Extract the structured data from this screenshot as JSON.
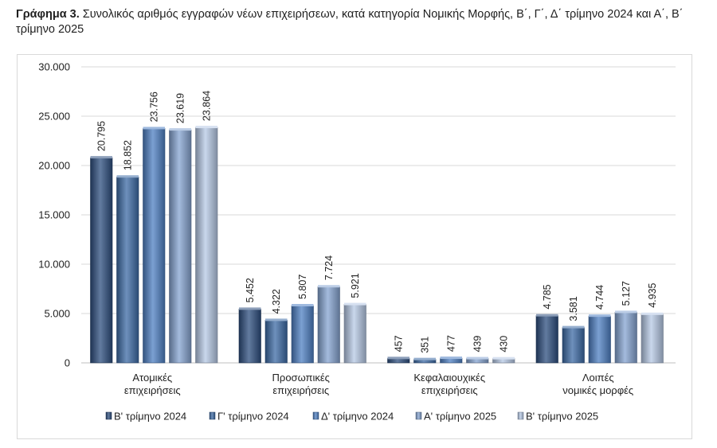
{
  "chart_data": {
    "type": "bar",
    "title_prefix": "Γράφημα 3.",
    "title": "Συνολικός αριθμός εγγραφών νέων επιχειρήσεων, κατά κατηγορία Νομικής Μορφής, Β΄, Γ΄, Δ΄ τρίμηνο 2024 και Α΄, Β΄ τρίμηνο 2025",
    "categories": [
      [
        "Ατομικές",
        "επιχειρήσεις"
      ],
      [
        "Προσωπικές",
        "επιχειρήσεις"
      ],
      [
        "Κεφαλαιουχικές",
        "επιχειρήσεις"
      ],
      [
        "Λοιπές",
        "νομικές μορφές"
      ]
    ],
    "series": [
      {
        "name": "Β' τρίμηνο 2024",
        "color": "#2e4f7f",
        "values": [
          20795,
          5452,
          457,
          4785
        ]
      },
      {
        "name": "Γ' τρίμηνο 2024",
        "color": "#3e6ba6",
        "values": [
          18852,
          4322,
          351,
          3581
        ]
      },
      {
        "name": "Δ' τρίμηνο 2024",
        "color": "#4f80c3",
        "values": [
          23756,
          5807,
          477,
          4744
        ]
      },
      {
        "name": "Α' τρίμηνο 2025",
        "color": "#86a4d1",
        "values": [
          23619,
          7724,
          439,
          5127
        ]
      },
      {
        "name": "Β' τρίμηνο 2025",
        "color": "#b7c9e6",
        "values": [
          23864,
          5921,
          430,
          4935
        ]
      }
    ],
    "data_labels": [
      [
        "20.795",
        "5.452",
        "457",
        "4.785"
      ],
      [
        "18.852",
        "4.322",
        "351",
        "3.581"
      ],
      [
        "23.756",
        "5.807",
        "477",
        "4.744"
      ],
      [
        "23.619",
        "7.724",
        "439",
        "5.127"
      ],
      [
        "23.864",
        "5.921",
        "430",
        "4.935"
      ]
    ],
    "yticks": [
      0,
      5000,
      10000,
      15000,
      20000,
      25000,
      30000
    ],
    "ytick_labels": [
      "0",
      "5.000",
      "10.000",
      "15.000",
      "20.000",
      "25.000",
      "30.000"
    ],
    "ylim": [
      0,
      30000
    ],
    "grid": true,
    "legend": "bottom"
  }
}
